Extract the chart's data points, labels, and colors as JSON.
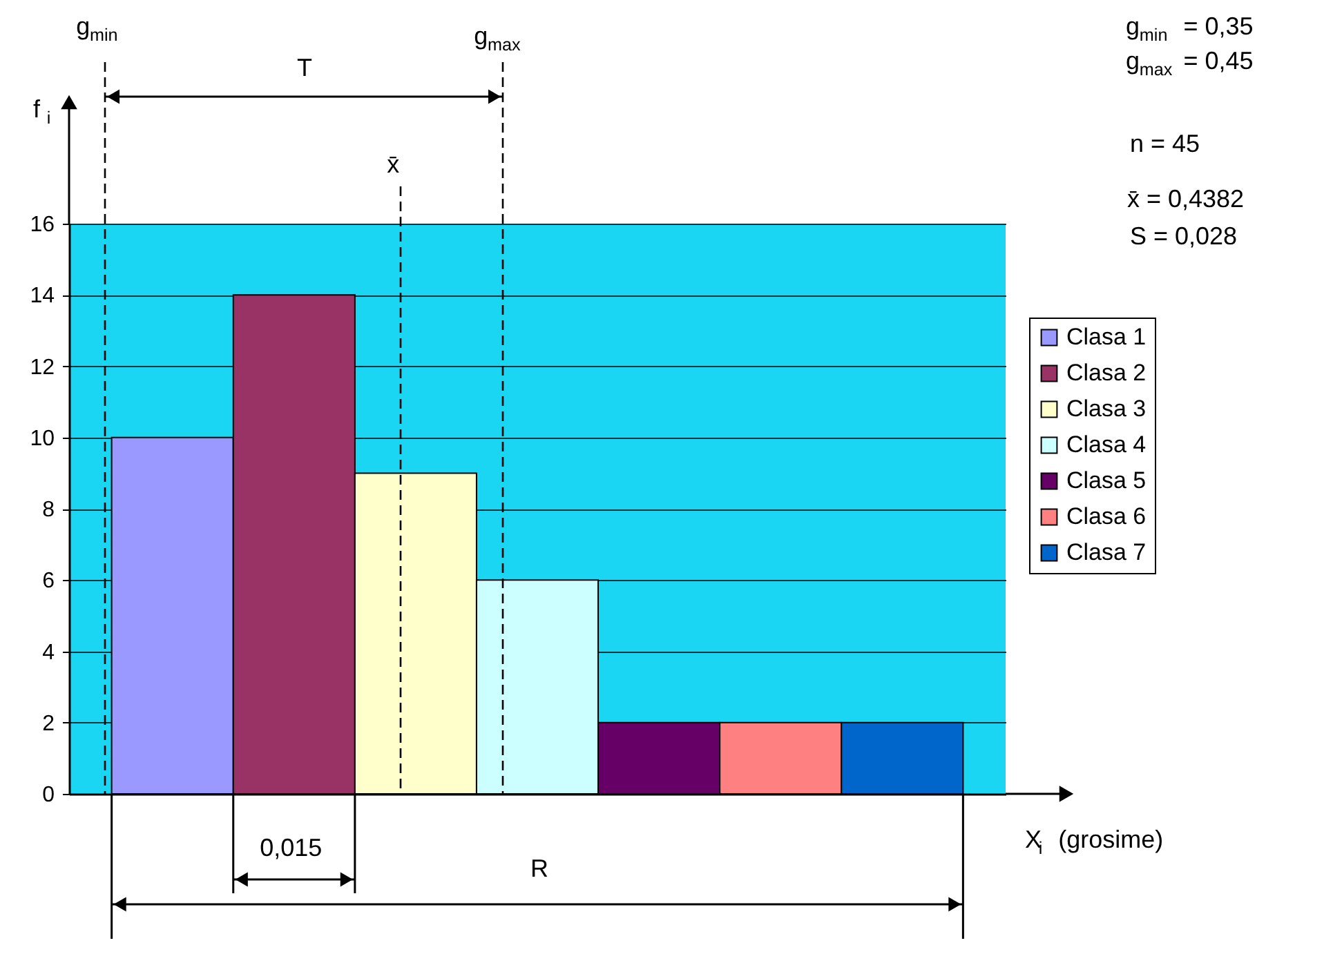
{
  "chart_data": {
    "type": "bar",
    "xlabel": "X$_{i}$ (grosime)",
    "ylabel": "f$_{i}$",
    "categories": [
      null,
      null,
      null,
      null,
      null,
      null,
      null
    ],
    "series": [
      {
        "name": "Clasa 1",
        "color": "#9999ff",
        "values": [
          10,
          null,
          null,
          null,
          null,
          null,
          null
        ]
      },
      {
        "name": "Clasa 2",
        "color": "#993366",
        "values": [
          null,
          14,
          null,
          null,
          null,
          null,
          null
        ]
      },
      {
        "name": "Clasa 3",
        "color": "#ffffcc",
        "values": [
          null,
          null,
          9,
          null,
          null,
          null,
          null
        ]
      },
      {
        "name": "Clasa 4",
        "color": "#ccffff",
        "values": [
          null,
          null,
          null,
          6,
          null,
          null,
          null
        ]
      },
      {
        "name": "Clasa 5",
        "color": "#660066",
        "values": [
          null,
          null,
          null,
          null,
          2,
          null,
          null
        ]
      },
      {
        "name": "Clasa 6",
        "color": "#ff8080",
        "values": [
          null,
          null,
          null,
          null,
          null,
          2,
          null
        ]
      },
      {
        "name": "Clasa 7",
        "color": "#0066cc",
        "values": [
          null,
          null,
          null,
          null,
          null,
          null,
          2
        ]
      }
    ],
    "ylim": [
      0,
      16
    ],
    "yticks": [
      0,
      2,
      4,
      6,
      8,
      10,
      12,
      14,
      16
    ],
    "grid": "y",
    "legend": "right",
    "tick_labels": "y",
    "annotations": [
      "g$_{min}$",
      "T",
      "g$_{max}$",
      "x̄",
      "0,015",
      "R",
      "g$_{min}$ = 0,35",
      "g$_{max}$ = 0,45",
      "n  =  45",
      "x̄  =  0,4382",
      "S  = 0,028"
    ]
  }
}
